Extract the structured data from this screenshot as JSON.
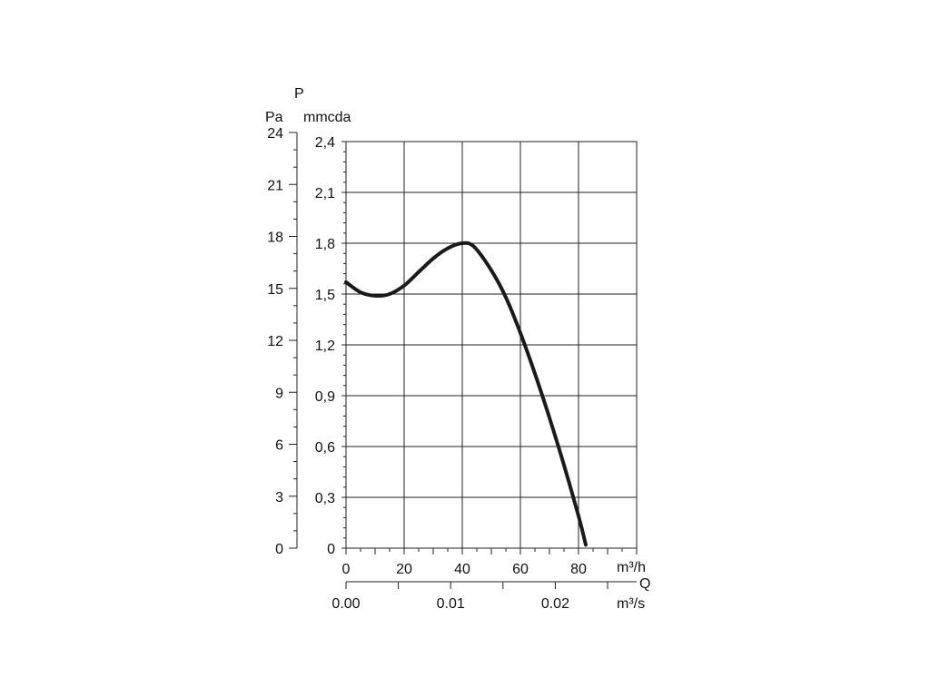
{
  "chart_data": {
    "type": "line",
    "title": "",
    "quantity_symbols": {
      "y": "P",
      "x": "Q"
    },
    "y_axes": {
      "left": {
        "unit": "Pa",
        "ticks": [
          "0",
          "3",
          "6",
          "9",
          "12",
          "15",
          "18",
          "21",
          "24"
        ],
        "range": [
          0,
          24
        ]
      },
      "right": {
        "unit": "mmcda",
        "ticks": [
          "0",
          "0,3",
          "0,6",
          "0,9",
          "1,2",
          "1,5",
          "1,8",
          "2,1",
          "2,4"
        ],
        "range": [
          0,
          2.4
        ]
      }
    },
    "x_axes": {
      "primary": {
        "unit": "m³/h",
        "ticks": [
          "0",
          "20",
          "40",
          "60",
          "80"
        ],
        "range": [
          0,
          100
        ]
      },
      "secondary": {
        "unit": "m³/s",
        "ticks": [
          "0.00",
          "0.01",
          "0.02"
        ],
        "tick_values": [
          0,
          0.01,
          0.02
        ]
      }
    },
    "grid": true,
    "series": [
      {
        "x_unit": "m³/h",
        "y_unit": "mmcda",
        "x": [
          0,
          5,
          10,
          15,
          20,
          25,
          30,
          35,
          40,
          44,
          50,
          55,
          60,
          65,
          70,
          75,
          80,
          82.5
        ],
        "y": [
          1.57,
          1.51,
          1.49,
          1.5,
          1.55,
          1.63,
          1.71,
          1.77,
          1.8,
          1.78,
          1.64,
          1.48,
          1.27,
          1.03,
          0.77,
          0.49,
          0.19,
          0.02
        ]
      }
    ]
  }
}
